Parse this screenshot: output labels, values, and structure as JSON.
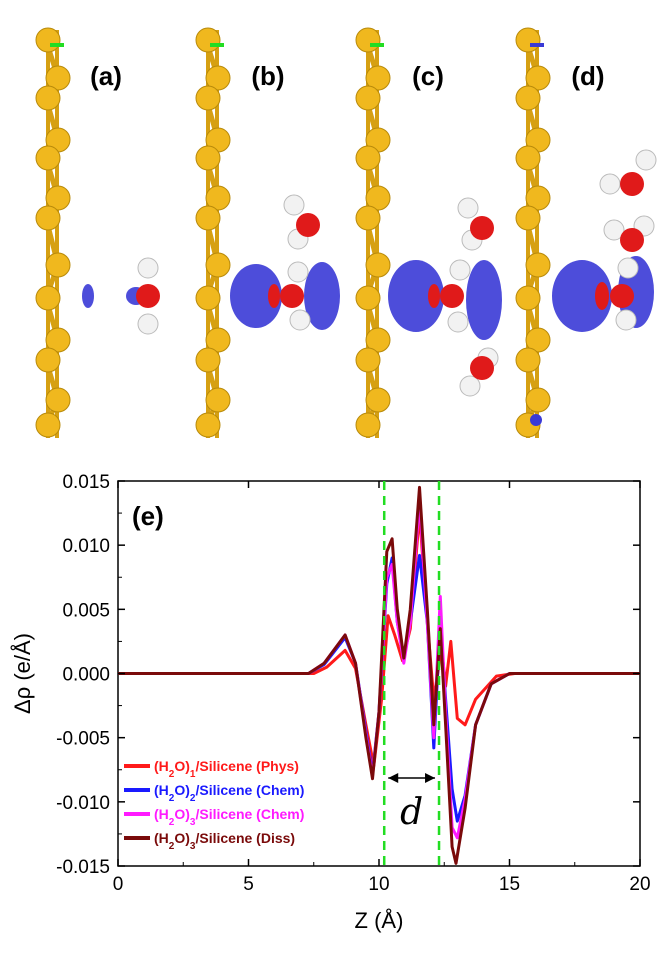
{
  "panels": [
    {
      "id": "a",
      "label": "(a)",
      "water": "H2O-phys"
    },
    {
      "id": "b",
      "label": "(b)",
      "water": "(H2O)2-chem"
    },
    {
      "id": "c",
      "label": "(c)",
      "water": "(H2O)3-chem"
    },
    {
      "id": "d",
      "label": "(d)",
      "water": "(H2O)3-diss"
    }
  ],
  "colors": {
    "si_atom": "#f0b81e",
    "si_bond": "#d6a012",
    "depletion": "#3a3ad6",
    "accumulation": "#e01a1a",
    "oxygen": "#e01a1a",
    "hydrogen": "#f2f2f2",
    "guide": "#22dd22"
  },
  "chart_data": {
    "type": "line",
    "panel_label": "(e)",
    "xlabel": "Z (Å)",
    "ylabel": "Δρ (e/Å)",
    "xlim": [
      0,
      20
    ],
    "ylim": [
      -0.015,
      0.015
    ],
    "xticks": [
      "0",
      "5",
      "10",
      "15",
      "20"
    ],
    "yticks": [
      "0.015",
      "0.010",
      "0.005",
      "0.000",
      "-0.005",
      "-0.010",
      "-0.015"
    ],
    "grid": false,
    "legend_position": "bottom-left",
    "vlines": [
      10.2,
      12.3
    ],
    "annotation": "d",
    "series": [
      {
        "name_parts": [
          "(H",
          "2",
          "O)",
          "1",
          "/Silicene (Phys)"
        ],
        "color": "#ff1a1a",
        "points": [
          [
            0,
            0
          ],
          [
            7.5,
            0
          ],
          [
            8,
            0.0005
          ],
          [
            8.7,
            0.0018
          ],
          [
            9.1,
            0.0004
          ],
          [
            9.5,
            -0.004
          ],
          [
            9.8,
            -0.0072
          ],
          [
            10.1,
            -0.002
          ],
          [
            10.35,
            0.0045
          ],
          [
            10.6,
            0.003
          ],
          [
            10.9,
            0.001
          ],
          [
            11.2,
            0.0035
          ],
          [
            11.55,
            0.0125
          ],
          [
            11.85,
            0.004
          ],
          [
            12.1,
            -0.002
          ],
          [
            12.4,
            0.002
          ],
          [
            12.55,
            -0.001
          ],
          [
            12.75,
            0.0025
          ],
          [
            13.0,
            -0.0035
          ],
          [
            13.3,
            -0.004
          ],
          [
            13.7,
            -0.002
          ],
          [
            14.5,
            -0.0002
          ],
          [
            15.2,
            0
          ],
          [
            20,
            0
          ]
        ]
      },
      {
        "name_parts": [
          "(H",
          "2",
          "O)",
          "2",
          "/Silicene (Chem)"
        ],
        "color": "#1a1aff",
        "points": [
          [
            0,
            0
          ],
          [
            7.3,
            0
          ],
          [
            7.9,
            0.0007
          ],
          [
            8.7,
            0.0028
          ],
          [
            9.1,
            0.0008
          ],
          [
            9.5,
            -0.0045
          ],
          [
            9.75,
            -0.0078
          ],
          [
            10.0,
            -0.003
          ],
          [
            10.3,
            0.007
          ],
          [
            10.5,
            0.009
          ],
          [
            10.7,
            0.004
          ],
          [
            10.95,
            0.0012
          ],
          [
            11.2,
            0.004
          ],
          [
            11.55,
            0.0092
          ],
          [
            11.85,
            0.004
          ],
          [
            12.1,
            -0.0058
          ],
          [
            12.35,
            0.004
          ],
          [
            12.55,
            -0.002
          ],
          [
            12.8,
            -0.009
          ],
          [
            13.0,
            -0.0115
          ],
          [
            13.3,
            -0.0095
          ],
          [
            13.7,
            -0.004
          ],
          [
            14.3,
            -0.0008
          ],
          [
            15,
            0
          ],
          [
            20,
            0
          ]
        ]
      },
      {
        "name_parts": [
          "(H",
          "2",
          "O)",
          "3",
          "/Silicene (Chem)"
        ],
        "color": "#ff1aff",
        "points": [
          [
            0,
            0
          ],
          [
            7.3,
            0
          ],
          [
            7.9,
            0.0008
          ],
          [
            8.7,
            0.003
          ],
          [
            9.1,
            0.0008
          ],
          [
            9.5,
            -0.0048
          ],
          [
            9.75,
            -0.008
          ],
          [
            10.0,
            -0.003
          ],
          [
            10.3,
            0.0075
          ],
          [
            10.5,
            0.0085
          ],
          [
            10.7,
            0.004
          ],
          [
            10.95,
            0.0008
          ],
          [
            11.2,
            0.004
          ],
          [
            11.55,
            0.0135
          ],
          [
            11.85,
            0.004
          ],
          [
            12.1,
            -0.005
          ],
          [
            12.35,
            0.006
          ],
          [
            12.55,
            -0.003
          ],
          [
            12.8,
            -0.012
          ],
          [
            13.0,
            -0.0128
          ],
          [
            13.3,
            -0.0098
          ],
          [
            13.7,
            -0.004
          ],
          [
            14.3,
            -0.0008
          ],
          [
            15,
            0
          ],
          [
            20,
            0
          ]
        ]
      },
      {
        "name_parts": [
          "(H",
          "2",
          "O)",
          "3",
          "/Silicene (Diss)"
        ],
        "color": "#7a0a0a",
        "points": [
          [
            0,
            0
          ],
          [
            7.3,
            0
          ],
          [
            7.9,
            0.0008
          ],
          [
            8.7,
            0.003
          ],
          [
            9.1,
            0.0008
          ],
          [
            9.5,
            -0.005
          ],
          [
            9.75,
            -0.0082
          ],
          [
            10.0,
            -0.003
          ],
          [
            10.3,
            0.0095
          ],
          [
            10.5,
            0.0105
          ],
          [
            10.7,
            0.005
          ],
          [
            10.95,
            0.0012
          ],
          [
            11.2,
            0.005
          ],
          [
            11.55,
            0.0145
          ],
          [
            11.85,
            0.005
          ],
          [
            12.1,
            -0.004
          ],
          [
            12.35,
            0.0035
          ],
          [
            12.55,
            -0.004
          ],
          [
            12.8,
            -0.0135
          ],
          [
            12.95,
            -0.0148
          ],
          [
            13.3,
            -0.0105
          ],
          [
            13.7,
            -0.004
          ],
          [
            14.3,
            -0.0008
          ],
          [
            15,
            0
          ],
          [
            20,
            0
          ]
        ]
      }
    ]
  }
}
